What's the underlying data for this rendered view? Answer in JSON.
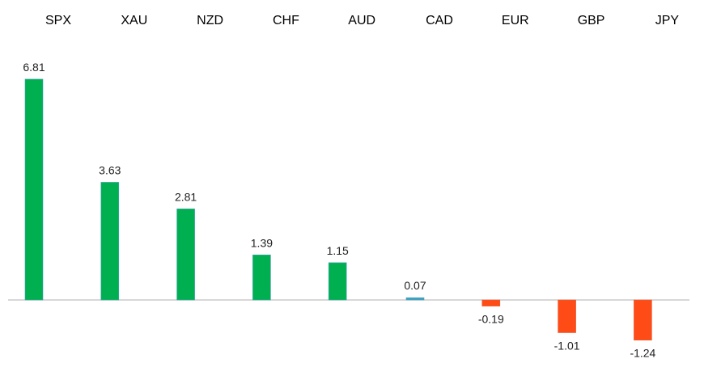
{
  "chart_data": {
    "type": "bar",
    "title": "",
    "xlabel": "",
    "ylabel": "",
    "categories": [
      "SPX",
      "XAU",
      "NZD",
      "CHF",
      "AUD",
      "CAD",
      "EUR",
      "GBP",
      "JPY"
    ],
    "values": [
      6.81,
      3.63,
      2.81,
      1.39,
      1.15,
      0.07,
      -0.19,
      -1.01,
      -1.24
    ],
    "value_labels": [
      "6.81",
      "3.63",
      "2.81",
      "1.39",
      "1.15",
      "0.07",
      "-0.19",
      "-1.01",
      "-1.24"
    ],
    "ylim": [
      -2.0,
      8.0
    ],
    "grid": false,
    "legend": "none",
    "category_axis_position": "top",
    "colors": {
      "positive": "#00b050",
      "positive_small": "#3fa0c0",
      "negative": "#ff4c17",
      "axis": "#bfbfbf"
    }
  }
}
